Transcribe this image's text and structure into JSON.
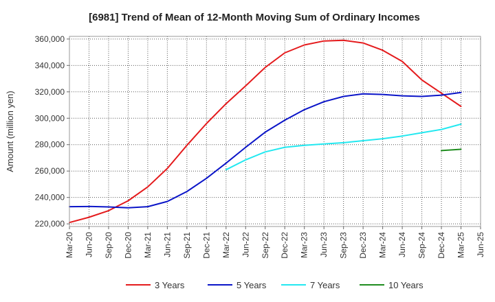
{
  "chart_data": {
    "type": "line",
    "title": "[6981]  Trend of Mean of 12-Month Moving Sum of Ordinary Incomes",
    "xlabel": "",
    "ylabel": "Amount (million yen)",
    "ylim": [
      218000,
      362000
    ],
    "yticks": [
      220000,
      240000,
      260000,
      280000,
      300000,
      320000,
      340000,
      360000
    ],
    "ytick_labels": [
      "220,000",
      "240,000",
      "260,000",
      "280,000",
      "300,000",
      "320,000",
      "340,000",
      "360,000"
    ],
    "categories": [
      "Mar-20",
      "Jun-20",
      "Sep-20",
      "Dec-20",
      "Mar-21",
      "Jun-21",
      "Sep-21",
      "Dec-21",
      "Mar-22",
      "Jun-22",
      "Sep-22",
      "Dec-22",
      "Mar-23",
      "Jun-23",
      "Sep-23",
      "Dec-23",
      "Mar-24",
      "Jun-24",
      "Sep-24",
      "Dec-24",
      "Mar-25",
      "Jun-25"
    ],
    "grid": true,
    "legend_position": "bottom",
    "series": [
      {
        "name": "3 Years",
        "color": "#e41a1c",
        "values": [
          221000,
          225000,
          230000,
          237500,
          248000,
          262000,
          279500,
          296000,
          311000,
          324500,
          338500,
          349500,
          355500,
          358500,
          359000,
          357000,
          351500,
          343000,
          329000,
          319000,
          309000,
          null
        ]
      },
      {
        "name": "5 Years",
        "color": "#0a14c8",
        "values": [
          233000,
          233200,
          232800,
          232200,
          233000,
          237000,
          244500,
          254500,
          266000,
          278000,
          289500,
          298500,
          306500,
          312500,
          316500,
          318500,
          318000,
          317000,
          316500,
          317500,
          319500,
          null
        ]
      },
      {
        "name": "7 Years",
        "color": "#22e8f0",
        "values": [
          null,
          null,
          null,
          null,
          null,
          null,
          null,
          null,
          261000,
          268500,
          274500,
          278000,
          279500,
          280500,
          281500,
          283000,
          284500,
          286500,
          289000,
          291500,
          295500,
          null
        ]
      },
      {
        "name": "10 Years",
        "color": "#1e8c1e",
        "values": [
          null,
          null,
          null,
          null,
          null,
          null,
          null,
          null,
          null,
          null,
          null,
          null,
          null,
          null,
          null,
          null,
          null,
          null,
          null,
          275500,
          276500,
          null
        ]
      }
    ]
  }
}
